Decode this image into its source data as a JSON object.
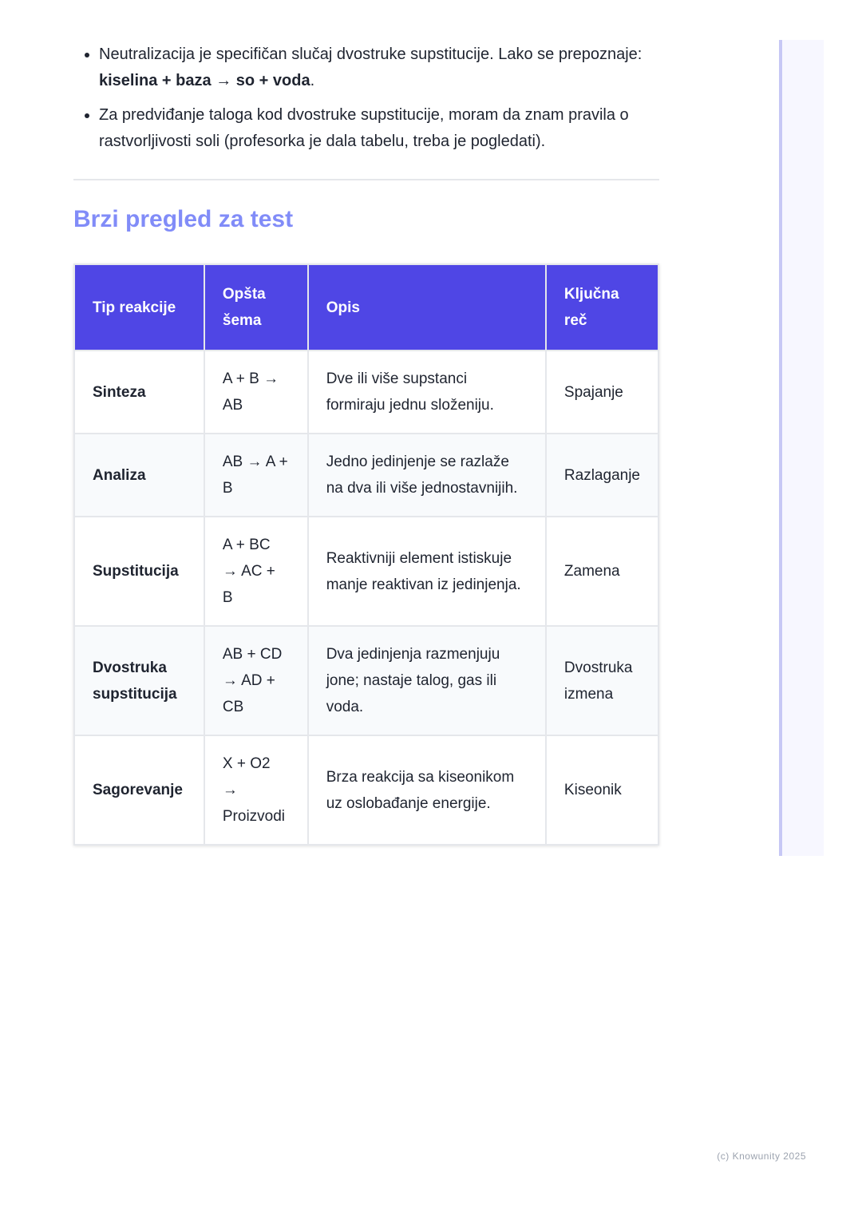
{
  "bullets": [
    {
      "text": "Neutralizacija je specifičan slučaj dvostruke supstitucije. Lako se prepoznaje: ",
      "bold": "kiselina + baza → so + voda",
      "end": "."
    },
    {
      "text": "Za predviđanje taloga kod dvostruke supstitucije, moram da znam pravila o rastvorljivosti soli (profesorka je dala tabelu, treba je pogledati).",
      "bold": "",
      "end": ""
    }
  ],
  "heading": "Brzi pregled za test",
  "table": {
    "headers": [
      "Tip reakcije",
      "Opšta šema",
      "Opis",
      "Ključna reč"
    ],
    "rows": [
      [
        "Sinteza",
        "A + B → AB",
        "Dve ili više supstanci formiraju jednu složeniju.",
        "Spajanje"
      ],
      [
        "Analiza",
        "AB → A + B",
        "Jedno jedinjenje se razlaže na dva ili više jednostavnijih.",
        "Razlaganje"
      ],
      [
        "Supstitucija",
        "A + BC → AC + B",
        "Reaktivniji element istiskuje manje reaktivan iz jedinjenja.",
        "Zamena"
      ],
      [
        "Dvostruka supstitucija",
        "AB + CD → AD + CB",
        "Dva jedinjenja razmenjuju jone; nastaje talog, gas ili voda.",
        "Dvostruka izmena"
      ],
      [
        "Sagorevanje",
        "X + O2 → Proizvodi",
        "Brza reakcija sa kiseonikom uz oslobađanje energije.",
        "Kiseonik"
      ]
    ]
  },
  "footer": "(c) Knowunity 2025",
  "colors": {
    "header_bg": "#4f46e5",
    "heading": "#818cf8"
  }
}
